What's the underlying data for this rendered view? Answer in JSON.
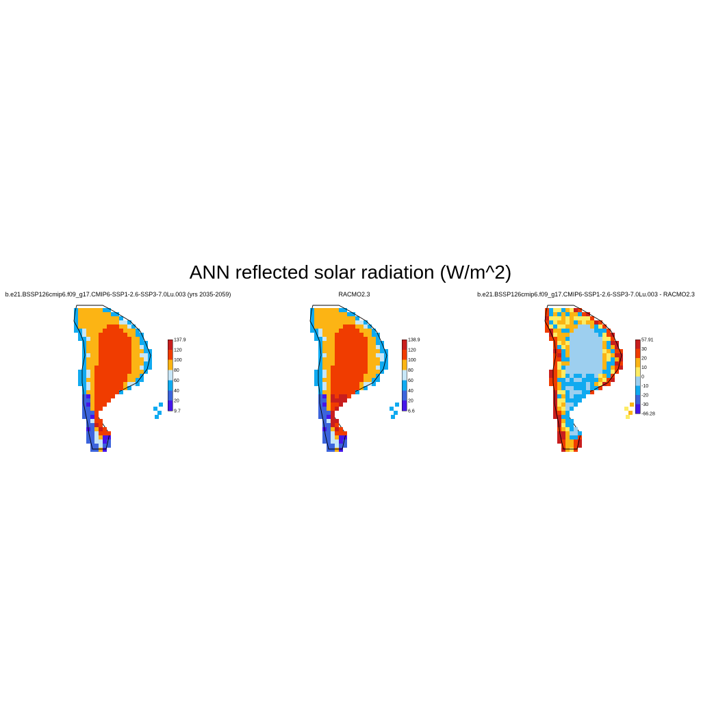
{
  "title": "ANN reflected solar radiation (W/m^2)",
  "panels": [
    {
      "title": "b.e21.BSSP126cmip6.f09_g17.CMIP6-SSP1-2.6-SSP3-7.0Lu.003 (yrs 2035-2059)",
      "colorbar": {
        "labels": [
          "137.9",
          "120",
          "100",
          "80",
          "60",
          "40",
          "20",
          "9.7"
        ],
        "colors": [
          "#c81e1e",
          "#f03c00",
          "#fcb414",
          "#c7e6f7",
          "#10aaf0",
          "#3c64dc",
          "#4616e8"
        ]
      }
    },
    {
      "title": "RACMO2.3",
      "colorbar": {
        "labels": [
          "138.9",
          "120",
          "100",
          "80",
          "60",
          "40",
          "20",
          "6.6"
        ],
        "colors": [
          "#c81e1e",
          "#f03c00",
          "#fcb414",
          "#c7e6f7",
          "#10aaf0",
          "#3c64dc",
          "#4616e8"
        ]
      }
    },
    {
      "title": "b.e21.BSSP126cmip6.f09_g17.CMIP6-SSP1-2.6-SSP3-7.0Lu.003 - RACMO2.3",
      "colorbar": {
        "labels": [
          "57.91",
          "30",
          "20",
          "10",
          "0",
          "-10",
          "-20",
          "-30",
          "-66.28"
        ],
        "colors": [
          "#c81e1e",
          "#f03c00",
          "#fcb414",
          "#fcec64",
          "#9dcfef",
          "#10aaf0",
          "#3c64dc",
          "#4616e8"
        ]
      }
    }
  ]
}
